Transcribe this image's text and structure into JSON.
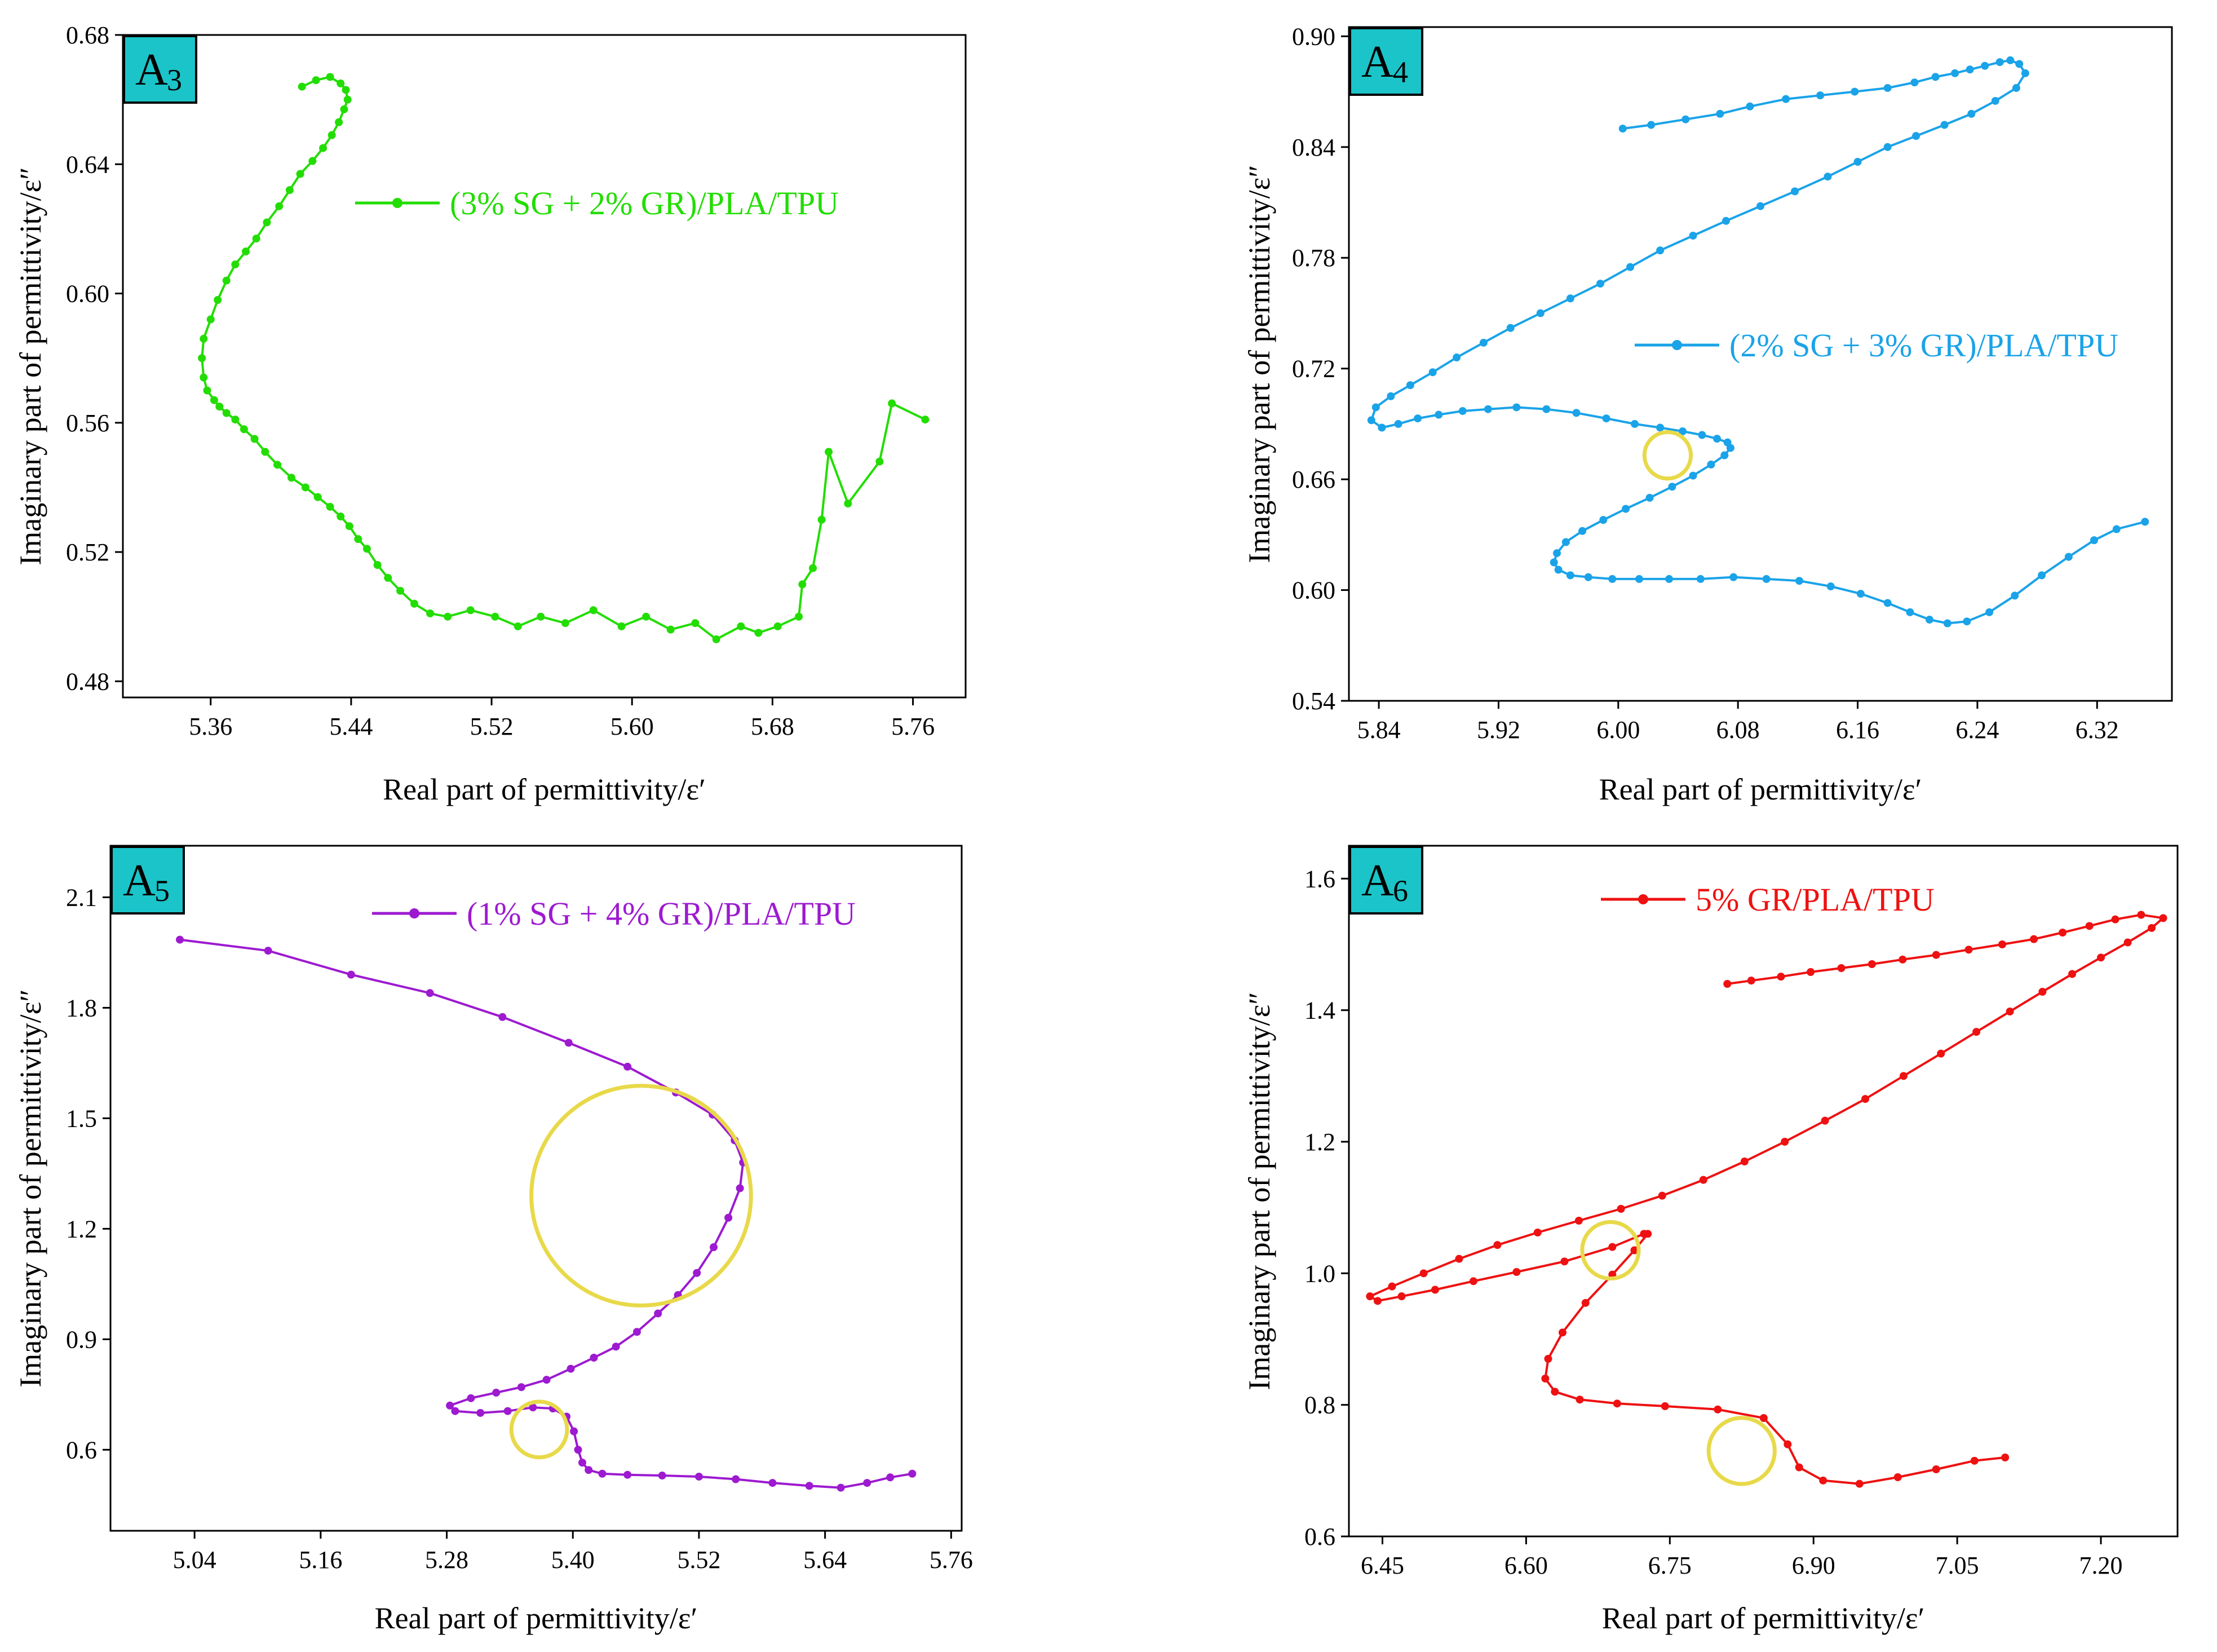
{
  "chart_data": [
    {
      "panel_label": "A",
      "panel_sub": "3",
      "type": "line",
      "xlabel": "Real part of permittivity/ε′",
      "ylabel": "Imaginary part of permittivity/ε″",
      "xlim": [
        5.31,
        5.79
      ],
      "ylim": [
        0.475,
        0.68
      ],
      "xticks": [
        5.36,
        5.44,
        5.52,
        5.6,
        5.68,
        5.76
      ],
      "yticks": [
        0.48,
        0.52,
        0.56,
        0.6,
        0.64,
        0.68
      ],
      "xtick_labels": [
        "5.36",
        "5.44",
        "5.52",
        "5.60",
        "5.68",
        "5.76"
      ],
      "ytick_labels": [
        "0.48",
        "0.52",
        "0.56",
        "0.60",
        "0.64",
        "0.68"
      ],
      "legend": "(3% SG + 2% GR)/PLA/TPU",
      "legend_position": "upper-right",
      "color": "#22dd00",
      "circles": [],
      "series": [
        {
          "name": "(3% SG + 2% GR)/PLA/TPU",
          "x": [
            5.767,
            5.748,
            5.741,
            5.723,
            5.712,
            5.708,
            5.703,
            5.697,
            5.695,
            5.683,
            5.672,
            5.662,
            5.648,
            5.636,
            5.622,
            5.608,
            5.594,
            5.578,
            5.562,
            5.548,
            5.535,
            5.522,
            5.508,
            5.495,
            5.485,
            5.476,
            5.468,
            5.461,
            5.455,
            5.449,
            5.444,
            5.439,
            5.434,
            5.428,
            5.421,
            5.414,
            5.406,
            5.398,
            5.391,
            5.385,
            5.379,
            5.374,
            5.369,
            5.365,
            5.362,
            5.358,
            5.356,
            5.355,
            5.356,
            5.36,
            5.364,
            5.369,
            5.374,
            5.38,
            5.386,
            5.392,
            5.399,
            5.405,
            5.411,
            5.418,
            5.424,
            5.429,
            5.433,
            5.436,
            5.438,
            5.437,
            5.434,
            5.428,
            5.42,
            5.412
          ],
          "y": [
            0.561,
            0.566,
            0.548,
            0.535,
            0.551,
            0.53,
            0.515,
            0.51,
            0.5,
            0.497,
            0.495,
            0.497,
            0.493,
            0.498,
            0.496,
            0.5,
            0.497,
            0.502,
            0.498,
            0.5,
            0.497,
            0.5,
            0.502,
            0.5,
            0.501,
            0.504,
            0.508,
            0.512,
            0.516,
            0.521,
            0.524,
            0.528,
            0.531,
            0.534,
            0.537,
            0.54,
            0.543,
            0.547,
            0.551,
            0.555,
            0.558,
            0.561,
            0.563,
            0.565,
            0.567,
            0.57,
            0.574,
            0.58,
            0.586,
            0.592,
            0.598,
            0.604,
            0.609,
            0.613,
            0.617,
            0.622,
            0.627,
            0.632,
            0.637,
            0.641,
            0.645,
            0.649,
            0.653,
            0.657,
            0.66,
            0.663,
            0.665,
            0.667,
            0.666,
            0.664
          ]
        }
      ]
    },
    {
      "panel_label": "A",
      "panel_sub": "4",
      "type": "line",
      "xlabel": "Real part of permittivity/ε′",
      "ylabel": "Imaginary part of permittivity/ε″",
      "xlim": [
        5.82,
        6.37
      ],
      "ylim": [
        0.54,
        0.905
      ],
      "xticks": [
        5.84,
        5.92,
        6.0,
        6.08,
        6.16,
        6.24,
        6.32
      ],
      "yticks": [
        0.54,
        0.6,
        0.66,
        0.72,
        0.78,
        0.84,
        0.9
      ],
      "xtick_labels": [
        "5.84",
        "5.92",
        "6.00",
        "6.08",
        "6.16",
        "6.24",
        "6.32"
      ],
      "ytick_labels": [
        "0.54",
        "0.60",
        "0.66",
        "0.72",
        "0.78",
        "0.84",
        "0.90"
      ],
      "legend": "(2% SG + 3% GR)/PLA/TPU",
      "legend_position": "right",
      "color": "#1aa3e8",
      "circles": [
        {
          "cx": 6.033,
          "cy": 0.673,
          "r": 0.0155
        }
      ],
      "series": [
        {
          "name": "(2% SG + 3% GR)/PLA/TPU",
          "x": [
            6.003,
            6.022,
            6.045,
            6.068,
            6.088,
            6.112,
            6.135,
            6.158,
            6.18,
            6.198,
            6.212,
            6.225,
            6.235,
            6.245,
            6.255,
            6.262,
            6.268,
            6.272,
            6.266,
            6.252,
            6.236,
            6.218,
            6.199,
            6.18,
            6.16,
            6.14,
            6.118,
            6.095,
            6.072,
            6.05,
            6.028,
            6.008,
            5.988,
            5.968,
            5.948,
            5.928,
            5.91,
            5.892,
            5.876,
            5.861,
            5.848,
            5.838,
            5.835,
            5.842,
            5.853,
            5.866,
            5.88,
            5.896,
            5.913,
            5.932,
            5.952,
            5.972,
            5.992,
            6.011,
            6.028,
            6.043,
            6.056,
            6.066,
            6.073,
            6.075,
            6.071,
            6.062,
            6.05,
            6.036,
            6.021,
            6.005,
            5.99,
            5.976,
            5.965,
            5.959,
            5.957,
            5.96,
            5.968,
            5.98,
            5.996,
            6.014,
            6.034,
            6.055,
            6.077,
            6.099,
            6.121,
            6.142,
            6.162,
            6.18,
            6.195,
            6.208,
            6.22,
            6.233,
            6.248,
            6.265,
            6.283,
            6.301,
            6.318,
            6.333,
            6.352
          ],
          "y": [
            0.85,
            0.852,
            0.855,
            0.858,
            0.862,
            0.866,
            0.868,
            0.87,
            0.872,
            0.875,
            0.878,
            0.88,
            0.882,
            0.884,
            0.886,
            0.887,
            0.885,
            0.88,
            0.872,
            0.865,
            0.858,
            0.852,
            0.846,
            0.84,
            0.832,
            0.824,
            0.816,
            0.808,
            0.8,
            0.792,
            0.784,
            0.775,
            0.766,
            0.758,
            0.75,
            0.742,
            0.734,
            0.726,
            0.718,
            0.711,
            0.705,
            0.699,
            0.692,
            0.688,
            0.69,
            0.693,
            0.695,
            0.697,
            0.698,
            0.699,
            0.698,
            0.696,
            0.693,
            0.69,
            0.688,
            0.686,
            0.684,
            0.682,
            0.68,
            0.677,
            0.673,
            0.668,
            0.662,
            0.656,
            0.65,
            0.644,
            0.638,
            0.632,
            0.626,
            0.62,
            0.615,
            0.611,
            0.608,
            0.607,
            0.606,
            0.606,
            0.606,
            0.606,
            0.607,
            0.606,
            0.605,
            0.602,
            0.598,
            0.593,
            0.588,
            0.584,
            0.582,
            0.583,
            0.588,
            0.597,
            0.608,
            0.618,
            0.627,
            0.633,
            0.637
          ]
        }
      ]
    },
    {
      "panel_label": "A",
      "panel_sub": "5",
      "type": "line",
      "xlabel": "Real part of permittivity/ε′",
      "ylabel": "Imaginary part of permittivity/ε″",
      "xlim": [
        4.96,
        5.77
      ],
      "ylim": [
        0.38,
        2.24
      ],
      "xticks": [
        5.04,
        5.16,
        5.28,
        5.4,
        5.52,
        5.64,
        5.76
      ],
      "yticks": [
        0.6,
        0.9,
        1.2,
        1.5,
        1.8,
        2.1
      ],
      "xtick_labels": [
        "5.04",
        "5.16",
        "5.28",
        "5.40",
        "5.52",
        "5.64",
        "5.76"
      ],
      "ytick_labels": [
        "0.6",
        "0.9",
        "1.2",
        "1.5",
        "1.8",
        "2.1"
      ],
      "legend": "(1% SG + 4% GR)/PLA/TPU",
      "legend_position": "upper-right",
      "color": "#9d1ad0",
      "circles": [
        {
          "cx": 5.465,
          "cy": 1.29,
          "r": 0.1045
        },
        {
          "cx": 5.368,
          "cy": 0.655,
          "r": 0.0265
        }
      ],
      "series": [
        {
          "name": "(1% SG + 4% GR)/PLA/TPU",
          "x": [
            5.026,
            5.11,
            5.189,
            5.264,
            5.333,
            5.396,
            5.452,
            5.498,
            5.533,
            5.554,
            5.562,
            5.559,
            5.548,
            5.534,
            5.518,
            5.5,
            5.481,
            5.461,
            5.441,
            5.42,
            5.398,
            5.375,
            5.351,
            5.327,
            5.303,
            5.283,
            5.288,
            5.312,
            5.338,
            5.362,
            5.381,
            5.394,
            5.401,
            5.405,
            5.409,
            5.415,
            5.428,
            5.452,
            5.485,
            5.52,
            5.555,
            5.59,
            5.625,
            5.655,
            5.68,
            5.702,
            5.723
          ],
          "y": [
            1.985,
            1.955,
            1.89,
            1.84,
            1.775,
            1.705,
            1.64,
            1.57,
            1.51,
            1.44,
            1.38,
            1.31,
            1.23,
            1.15,
            1.08,
            1.02,
            0.97,
            0.92,
            0.88,
            0.85,
            0.82,
            0.79,
            0.77,
            0.755,
            0.74,
            0.72,
            0.705,
            0.7,
            0.705,
            0.715,
            0.712,
            0.69,
            0.65,
            0.6,
            0.565,
            0.545,
            0.535,
            0.532,
            0.53,
            0.527,
            0.52,
            0.51,
            0.502,
            0.497,
            0.51,
            0.525,
            0.535
          ]
        }
      ]
    },
    {
      "panel_label": "A",
      "panel_sub": "6",
      "type": "line",
      "xlabel": "Real part of permittivity/ε′",
      "ylabel": "Imaginary part of permittivity/ε″",
      "xlim": [
        6.415,
        7.28
      ],
      "ylim": [
        0.6,
        1.65
      ],
      "xticks": [
        6.45,
        6.6,
        6.75,
        6.9,
        7.05,
        7.2
      ],
      "yticks": [
        0.6,
        0.8,
        1.0,
        1.2,
        1.4,
        1.6
      ],
      "xtick_labels": [
        "6.45",
        "6.60",
        "6.75",
        "6.90",
        "7.05",
        "7.20"
      ],
      "ytick_labels": [
        "0.6",
        "0.8",
        "1.0",
        "1.2",
        "1.4",
        "1.6"
      ],
      "legend": "5% GR/PLA/TPU",
      "legend_position": "upper-right",
      "color": "#ee1111",
      "circles": [
        {
          "cx": 6.688,
          "cy": 1.035,
          "r": 0.0295
        },
        {
          "cx": 6.825,
          "cy": 0.73,
          "r": 0.0345
        }
      ],
      "series": [
        {
          "name": "5% GR/PLA/TPU",
          "x": [
            6.81,
            6.835,
            6.866,
            6.897,
            6.929,
            6.961,
            6.993,
            7.028,
            7.062,
            7.097,
            7.13,
            7.16,
            7.188,
            7.215,
            7.242,
            7.265,
            7.253,
            7.228,
            7.2,
            7.17,
            7.139,
            7.105,
            7.07,
            7.033,
            6.994,
            6.954,
            6.912,
            6.87,
            6.828,
            6.785,
            6.742,
            6.699,
            6.655,
            6.612,
            6.57,
            6.53,
            6.493,
            6.46,
            6.437,
            6.445,
            6.47,
            6.505,
            6.545,
            6.59,
            6.64,
            6.69,
            6.723,
            6.727,
            6.713,
            6.69,
            6.662,
            6.638,
            6.623,
            6.62,
            6.63,
            6.656,
            6.695,
            6.745,
            6.8,
            6.848,
            6.873,
            6.885,
            6.91,
            6.948,
            6.988,
            7.028,
            7.068,
            7.1
          ],
          "y": [
            1.44,
            1.445,
            1.451,
            1.458,
            1.464,
            1.47,
            1.477,
            1.484,
            1.492,
            1.5,
            1.508,
            1.518,
            1.528,
            1.538,
            1.545,
            1.54,
            1.525,
            1.503,
            1.48,
            1.455,
            1.428,
            1.398,
            1.367,
            1.334,
            1.3,
            1.265,
            1.232,
            1.2,
            1.17,
            1.142,
            1.118,
            1.098,
            1.08,
            1.062,
            1.043,
            1.022,
            1.0,
            0.98,
            0.965,
            0.958,
            0.965,
            0.975,
            0.988,
            1.002,
            1.018,
            1.04,
            1.06,
            1.06,
            1.035,
            0.998,
            0.955,
            0.91,
            0.87,
            0.84,
            0.82,
            0.808,
            0.802,
            0.798,
            0.793,
            0.78,
            0.74,
            0.705,
            0.685,
            0.68,
            0.69,
            0.702,
            0.715,
            0.72
          ]
        }
      ]
    }
  ]
}
